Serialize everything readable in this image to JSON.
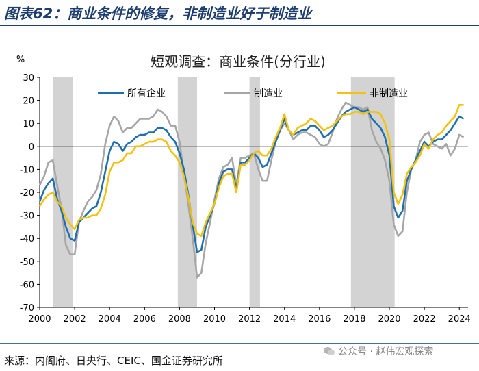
{
  "header": {
    "title": "图表62：商业条件的修复，非制造业好于制造业"
  },
  "footer": {
    "source": "来源：内阁府、日央行、CEIC、国金证券研究所",
    "watermark": "公众号 · 赵伟宏观探索"
  },
  "colors": {
    "all": "#1f6fb0",
    "mfg": "#a6a6a6",
    "nonmfg": "#f2c20f",
    "recession": "#d3d3d3"
  },
  "chart_data": {
    "type": "line",
    "title": "短观调查：商业条件(分行业)",
    "ylabel": "%",
    "xlim": [
      2000,
      2024.5
    ],
    "ylim": [
      -70,
      30
    ],
    "yticks": [
      30,
      20,
      10,
      0,
      -10,
      -20,
      -30,
      -40,
      -50,
      -60,
      -70
    ],
    "xticks": [
      2000,
      2002,
      2004,
      2006,
      2008,
      2010,
      2012,
      2014,
      2016,
      2018,
      2020,
      2022,
      2024
    ],
    "recessions": [
      [
        2000.75,
        2001.9
      ],
      [
        2007.9,
        2009.0
      ],
      [
        2012.0,
        2012.6
      ],
      [
        2017.8,
        2020.3
      ]
    ],
    "legend": [
      "所有企业",
      "制造业",
      "非制造业"
    ],
    "series": [
      {
        "name": "所有企业",
        "points": [
          [
            2000.0,
            -24
          ],
          [
            2000.25,
            -19
          ],
          [
            2000.5,
            -16
          ],
          [
            2000.75,
            -14
          ],
          [
            2001.0,
            -23
          ],
          [
            2001.25,
            -28
          ],
          [
            2001.5,
            -35
          ],
          [
            2001.75,
            -40
          ],
          [
            2002.0,
            -41
          ],
          [
            2002.25,
            -33
          ],
          [
            2002.5,
            -31
          ],
          [
            2002.75,
            -29
          ],
          [
            2003.0,
            -27
          ],
          [
            2003.25,
            -26
          ],
          [
            2003.5,
            -20
          ],
          [
            2003.75,
            -11
          ],
          [
            2004.0,
            -2
          ],
          [
            2004.25,
            2
          ],
          [
            2004.5,
            1
          ],
          [
            2004.75,
            -2
          ],
          [
            2005.0,
            1
          ],
          [
            2005.25,
            2
          ],
          [
            2005.5,
            4
          ],
          [
            2005.75,
            5
          ],
          [
            2006.0,
            5
          ],
          [
            2006.25,
            6
          ],
          [
            2006.5,
            6
          ],
          [
            2006.75,
            8
          ],
          [
            2007.0,
            8
          ],
          [
            2007.25,
            7
          ],
          [
            2007.5,
            4
          ],
          [
            2007.75,
            2
          ],
          [
            2008.0,
            -3
          ],
          [
            2008.25,
            -10
          ],
          [
            2008.5,
            -21
          ],
          [
            2008.75,
            -34
          ],
          [
            2009.0,
            -46
          ],
          [
            2009.25,
            -45
          ],
          [
            2009.5,
            -35
          ],
          [
            2009.75,
            -30
          ],
          [
            2010.0,
            -25
          ],
          [
            2010.25,
            -16
          ],
          [
            2010.5,
            -11
          ],
          [
            2010.75,
            -10
          ],
          [
            2011.0,
            -10
          ],
          [
            2011.25,
            -19
          ],
          [
            2011.5,
            -7
          ],
          [
            2011.75,
            -7
          ],
          [
            2012.0,
            -5
          ],
          [
            2012.25,
            -3
          ],
          [
            2012.5,
            -5
          ],
          [
            2012.75,
            -9
          ],
          [
            2013.0,
            -8
          ],
          [
            2013.25,
            -3
          ],
          [
            2013.5,
            2
          ],
          [
            2013.75,
            7
          ],
          [
            2014.0,
            12
          ],
          [
            2014.25,
            7
          ],
          [
            2014.5,
            5
          ],
          [
            2014.75,
            6
          ],
          [
            2015.0,
            7
          ],
          [
            2015.25,
            7
          ],
          [
            2015.5,
            9
          ],
          [
            2015.75,
            9
          ],
          [
            2016.0,
            7
          ],
          [
            2016.25,
            4
          ],
          [
            2016.5,
            5
          ],
          [
            2016.75,
            7
          ],
          [
            2017.0,
            10
          ],
          [
            2017.25,
            13
          ],
          [
            2017.5,
            15
          ],
          [
            2017.75,
            16
          ],
          [
            2018.0,
            17
          ],
          [
            2018.25,
            16
          ],
          [
            2018.5,
            15
          ],
          [
            2018.75,
            16
          ],
          [
            2019.0,
            12
          ],
          [
            2019.25,
            10
          ],
          [
            2019.5,
            8
          ],
          [
            2019.75,
            4
          ],
          [
            2020.0,
            -4
          ],
          [
            2020.25,
            -26
          ],
          [
            2020.5,
            -31
          ],
          [
            2020.75,
            -28
          ],
          [
            2021.0,
            -15
          ],
          [
            2021.25,
            -10
          ],
          [
            2021.5,
            -6
          ],
          [
            2021.75,
            -2
          ],
          [
            2022.0,
            2
          ],
          [
            2022.25,
            0
          ],
          [
            2022.5,
            2
          ],
          [
            2022.75,
            3
          ],
          [
            2023.0,
            3
          ],
          [
            2023.25,
            5
          ],
          [
            2023.5,
            7
          ],
          [
            2023.75,
            10
          ],
          [
            2024.0,
            13
          ],
          [
            2024.25,
            12
          ]
        ]
      },
      {
        "name": "制造业",
        "points": [
          [
            2000.0,
            -17
          ],
          [
            2000.25,
            -13
          ],
          [
            2000.5,
            -7
          ],
          [
            2000.75,
            -6
          ],
          [
            2001.0,
            -17
          ],
          [
            2001.25,
            -27
          ],
          [
            2001.5,
            -43
          ],
          [
            2001.75,
            -47
          ],
          [
            2002.0,
            -47
          ],
          [
            2002.25,
            -33
          ],
          [
            2002.5,
            -28
          ],
          [
            2002.75,
            -24
          ],
          [
            2003.0,
            -22
          ],
          [
            2003.25,
            -19
          ],
          [
            2003.5,
            -12
          ],
          [
            2003.75,
            1
          ],
          [
            2004.0,
            9
          ],
          [
            2004.25,
            13
          ],
          [
            2004.5,
            11
          ],
          [
            2004.75,
            6
          ],
          [
            2005.0,
            8
          ],
          [
            2005.25,
            8
          ],
          [
            2005.5,
            10
          ],
          [
            2005.75,
            12
          ],
          [
            2006.0,
            12
          ],
          [
            2006.25,
            12
          ],
          [
            2006.5,
            13
          ],
          [
            2006.75,
            16
          ],
          [
            2007.0,
            15
          ],
          [
            2007.25,
            13
          ],
          [
            2007.5,
            9
          ],
          [
            2007.75,
            9
          ],
          [
            2008.0,
            2
          ],
          [
            2008.25,
            -12
          ],
          [
            2008.5,
            -25
          ],
          [
            2008.75,
            -40
          ],
          [
            2009.0,
            -57
          ],
          [
            2009.25,
            -55
          ],
          [
            2009.5,
            -42
          ],
          [
            2009.75,
            -33
          ],
          [
            2010.0,
            -23
          ],
          [
            2010.25,
            -14
          ],
          [
            2010.5,
            -9
          ],
          [
            2010.75,
            -8
          ],
          [
            2011.0,
            -5
          ],
          [
            2011.25,
            -17
          ],
          [
            2011.5,
            -5
          ],
          [
            2011.75,
            -5
          ],
          [
            2012.0,
            -4
          ],
          [
            2012.25,
            -3
          ],
          [
            2012.5,
            -10
          ],
          [
            2012.75,
            -15
          ],
          [
            2013.0,
            -15
          ],
          [
            2013.25,
            -6
          ],
          [
            2013.5,
            2
          ],
          [
            2013.75,
            7
          ],
          [
            2014.0,
            10
          ],
          [
            2014.25,
            7
          ],
          [
            2014.5,
            3
          ],
          [
            2014.75,
            5
          ],
          [
            2015.0,
            6
          ],
          [
            2015.25,
            6
          ],
          [
            2015.5,
            5
          ],
          [
            2015.75,
            4
          ],
          [
            2016.0,
            1
          ],
          [
            2016.25,
            0
          ],
          [
            2016.5,
            1
          ],
          [
            2016.75,
            6
          ],
          [
            2017.0,
            12
          ],
          [
            2017.25,
            16
          ],
          [
            2017.5,
            19
          ],
          [
            2017.75,
            18
          ],
          [
            2018.0,
            17
          ],
          [
            2018.25,
            17
          ],
          [
            2018.5,
            16
          ],
          [
            2018.75,
            17
          ],
          [
            2019.0,
            7
          ],
          [
            2019.25,
            2
          ],
          [
            2019.5,
            -1
          ],
          [
            2019.75,
            -6
          ],
          [
            2020.0,
            -15
          ],
          [
            2020.25,
            -34
          ],
          [
            2020.5,
            -39
          ],
          [
            2020.75,
            -37
          ],
          [
            2021.0,
            -20
          ],
          [
            2021.25,
            -10
          ],
          [
            2021.5,
            -6
          ],
          [
            2021.75,
            2
          ],
          [
            2022.0,
            5
          ],
          [
            2022.25,
            6
          ],
          [
            2022.5,
            1
          ],
          [
            2022.75,
            0
          ],
          [
            2023.0,
            -1
          ],
          [
            2023.25,
            1
          ],
          [
            2023.5,
            -4
          ],
          [
            2023.75,
            -1
          ],
          [
            2024.0,
            5
          ],
          [
            2024.25,
            4
          ]
        ]
      },
      {
        "name": "非制造业",
        "points": [
          [
            2000.0,
            -26
          ],
          [
            2000.25,
            -23
          ],
          [
            2000.5,
            -21
          ],
          [
            2000.75,
            -20
          ],
          [
            2001.0,
            -24
          ],
          [
            2001.25,
            -26
          ],
          [
            2001.5,
            -31
          ],
          [
            2001.75,
            -34
          ],
          [
            2002.0,
            -36
          ],
          [
            2002.25,
            -32
          ],
          [
            2002.5,
            -31
          ],
          [
            2002.75,
            -31
          ],
          [
            2003.0,
            -30
          ],
          [
            2003.25,
            -30
          ],
          [
            2003.5,
            -27
          ],
          [
            2003.75,
            -21
          ],
          [
            2004.0,
            -11
          ],
          [
            2004.25,
            -7
          ],
          [
            2004.5,
            -7
          ],
          [
            2004.75,
            -6
          ],
          [
            2005.0,
            -3
          ],
          [
            2005.25,
            -3
          ],
          [
            2005.5,
            0
          ],
          [
            2005.75,
            0
          ],
          [
            2006.0,
            1
          ],
          [
            2006.25,
            2
          ],
          [
            2006.5,
            2
          ],
          [
            2006.75,
            3
          ],
          [
            2007.0,
            3
          ],
          [
            2007.25,
            2
          ],
          [
            2007.5,
            -2
          ],
          [
            2007.75,
            -4
          ],
          [
            2008.0,
            -7
          ],
          [
            2008.25,
            -13
          ],
          [
            2008.5,
            -22
          ],
          [
            2008.75,
            -33
          ],
          [
            2009.0,
            -38
          ],
          [
            2009.25,
            -39
          ],
          [
            2009.5,
            -33
          ],
          [
            2009.75,
            -29
          ],
          [
            2010.0,
            -25
          ],
          [
            2010.25,
            -18
          ],
          [
            2010.5,
            -13
          ],
          [
            2010.75,
            -12
          ],
          [
            2011.0,
            -12
          ],
          [
            2011.25,
            -20
          ],
          [
            2011.5,
            -8
          ],
          [
            2011.75,
            -8
          ],
          [
            2012.0,
            -6
          ],
          [
            2012.25,
            -3
          ],
          [
            2012.5,
            -2
          ],
          [
            2012.75,
            -4
          ],
          [
            2013.0,
            -4
          ],
          [
            2013.25,
            -1
          ],
          [
            2013.5,
            4
          ],
          [
            2013.75,
            8
          ],
          [
            2014.0,
            14
          ],
          [
            2014.25,
            7
          ],
          [
            2014.5,
            5
          ],
          [
            2014.75,
            8
          ],
          [
            2015.0,
            9
          ],
          [
            2015.25,
            10
          ],
          [
            2015.5,
            12
          ],
          [
            2015.75,
            11
          ],
          [
            2016.0,
            9
          ],
          [
            2016.25,
            7
          ],
          [
            2016.5,
            8
          ],
          [
            2016.75,
            9
          ],
          [
            2017.0,
            11
          ],
          [
            2017.25,
            13
          ],
          [
            2017.5,
            14
          ],
          [
            2017.75,
            14
          ],
          [
            2018.0,
            15
          ],
          [
            2018.25,
            15
          ],
          [
            2018.5,
            14
          ],
          [
            2018.75,
            15
          ],
          [
            2019.0,
            15
          ],
          [
            2019.25,
            15
          ],
          [
            2019.5,
            14
          ],
          [
            2019.75,
            10
          ],
          [
            2020.0,
            3
          ],
          [
            2020.25,
            -20
          ],
          [
            2020.5,
            -25
          ],
          [
            2020.75,
            -21
          ],
          [
            2021.0,
            -12
          ],
          [
            2021.25,
            -9
          ],
          [
            2021.5,
            -7
          ],
          [
            2021.75,
            -4
          ],
          [
            2022.0,
            1
          ],
          [
            2022.25,
            -1
          ],
          [
            2022.5,
            3
          ],
          [
            2022.75,
            5
          ],
          [
            2023.0,
            6
          ],
          [
            2023.25,
            9
          ],
          [
            2023.5,
            11
          ],
          [
            2023.75,
            13
          ],
          [
            2024.0,
            18
          ],
          [
            2024.25,
            18
          ]
        ]
      }
    ]
  }
}
